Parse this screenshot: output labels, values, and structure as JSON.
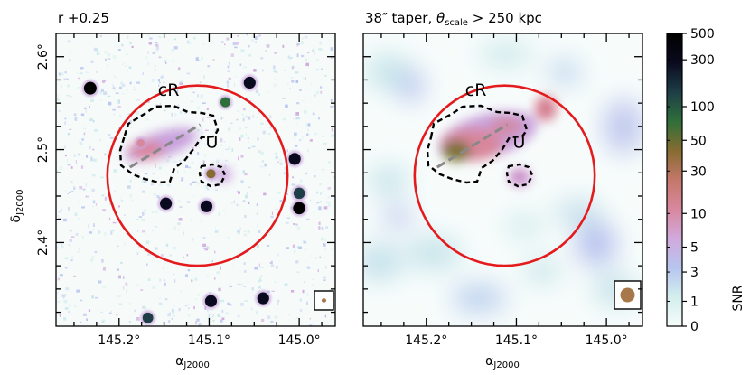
{
  "chart_data": [
    {
      "type": "heatmap",
      "title": "r +0.25",
      "xlabel": "α_J2000",
      "ylabel": "δ_J2000",
      "xticks": [
        "145.2°",
        "145.1°",
        "145.0°"
      ],
      "xtick_values": [
        145.2,
        145.1,
        145.0
      ],
      "yticks": [
        "2.6°",
        "2.5°",
        "2.4°"
      ],
      "ytick_values": [
        2.6,
        2.5,
        2.4
      ],
      "xlim": [
        145.27,
        144.96
      ],
      "ylim": [
        2.31,
        2.625
      ],
      "annotations": [
        {
          "label": "cR",
          "ra": 145.145,
          "dec": 2.558
        },
        {
          "label": "U",
          "ra": 145.097,
          "dec": 2.502
        }
      ],
      "circle": {
        "ra": 145.113,
        "dec": 2.472,
        "radius_deg": 0.1,
        "color": "#e41a1c"
      },
      "axis_line": {
        "ra": [
          145.188,
          145.11
        ],
        "dec": [
          2.481,
          2.527
        ],
        "color": "#888888"
      },
      "sources": [
        {
          "ra": 145.232,
          "dec": 2.566,
          "snr": 500
        },
        {
          "ra": 145.082,
          "dec": 2.551,
          "snr": 60
        },
        {
          "ra": 145.055,
          "dec": 2.572,
          "snr": 300
        },
        {
          "ra": 145.098,
          "dec": 2.474,
          "snr": 40
        },
        {
          "ra": 145.176,
          "dec": 2.507,
          "snr": 15
        },
        {
          "ra": 145.103,
          "dec": 2.439,
          "snr": 300
        },
        {
          "ra": 145.148,
          "dec": 2.442,
          "snr": 300
        },
        {
          "ra": 145.005,
          "dec": 2.49,
          "snr": 300
        },
        {
          "ra": 145.0,
          "dec": 2.453,
          "snr": 200
        },
        {
          "ra": 145.0,
          "dec": 2.437,
          "snr": 400
        },
        {
          "ra": 145.098,
          "dec": 2.337,
          "snr": 300
        },
        {
          "ra": 145.04,
          "dec": 2.34,
          "snr": 300
        },
        {
          "ra": 145.168,
          "dec": 2.319,
          "snr": 100
        }
      ]
    },
    {
      "type": "heatmap",
      "title": "38″ taper, θ_scale > 250 kpc",
      "xlabel": "α_J2000",
      "ylabel": "δ_J2000",
      "xticks": [
        "145.2°",
        "145.1°",
        "145.0°"
      ],
      "xtick_values": [
        145.2,
        145.1,
        145.0
      ],
      "xlim": [
        145.27,
        144.96
      ],
      "ylim": [
        2.31,
        2.625
      ],
      "annotations": [
        {
          "label": "cR",
          "ra": 145.145,
          "dec": 2.558
        },
        {
          "label": "U",
          "ra": 145.097,
          "dec": 2.502
        }
      ],
      "circle": {
        "ra": 145.113,
        "dec": 2.472,
        "radius_deg": 0.1,
        "color": "#e41a1c"
      },
      "axis_line": {
        "ra": [
          145.188,
          145.11
        ],
        "dec": [
          2.481,
          2.527
        ],
        "color": "#888888"
      },
      "blobs": [
        {
          "ra": 145.183,
          "dec": 2.505,
          "snr": 35
        },
        {
          "ra": 145.155,
          "dec": 2.515,
          "snr": 12
        },
        {
          "ra": 145.13,
          "dec": 2.52,
          "snr": 8
        },
        {
          "ra": 145.1,
          "dec": 2.474,
          "snr": 12
        },
        {
          "ra": 145.05,
          "dec": 2.548,
          "snr": 15
        }
      ]
    }
  ],
  "colorbar": {
    "label": "SNR",
    "ticks": [
      "500",
      "300",
      "100",
      "50",
      "30",
      "10",
      "5",
      "3",
      "1",
      "0"
    ],
    "tick_values": [
      500,
      300,
      100,
      50,
      30,
      10,
      5,
      3,
      1,
      0
    ],
    "colors": [
      "#f5fcfb",
      "#d3eeee",
      "#b7c5ee",
      "#d1a9dc",
      "#d8889e",
      "#c4776a",
      "#866c31",
      "#2f6f3a",
      "#1e3d47",
      "#0a0a1e",
      "#000000"
    ]
  }
}
